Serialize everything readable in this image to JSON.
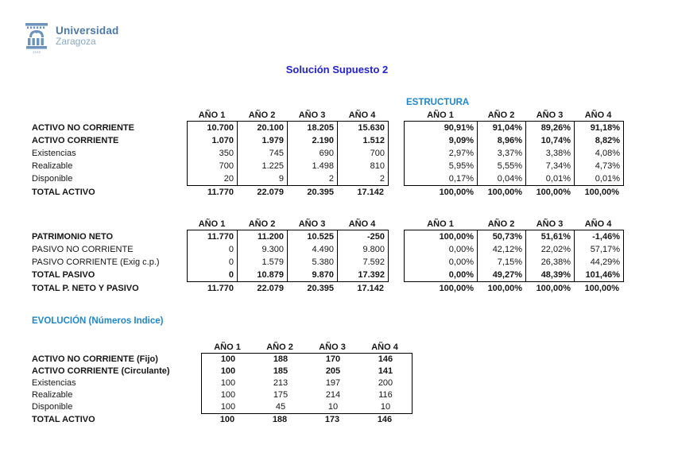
{
  "logo": {
    "line1": "Universidad",
    "line2": "Zaragoza",
    "year_mark": "1542"
  },
  "title": "Solución Supuesto 2",
  "sections": {
    "estructura_label": "ESTRUCTURA",
    "evolucion_label": "EVOLUCIÓN (Números Indice)"
  },
  "colors": {
    "title_blue": "#2222d6",
    "heading_blue": "#1e87d2",
    "logo_blue": "#6b93bd",
    "logo_text_dark": "#4b79a8",
    "logo_text_light": "#8aa9c7",
    "table_border": "#000000"
  },
  "year_headers": [
    "AÑO 1",
    "AÑO 2",
    "AÑO 3",
    "AÑO 4"
  ],
  "tables": [
    {
      "id": "activo",
      "rows": [
        {
          "label": "ACTIVO NO CORRIENTE",
          "bold": true,
          "values": [
            "10.700",
            "20.100",
            "18.205",
            "15.630"
          ],
          "est": [
            "90,91%",
            "91,04%",
            "89,26%",
            "91,18%"
          ]
        },
        {
          "label": "ACTIVO CORRIENTE",
          "bold": true,
          "values": [
            "1.070",
            "1.979",
            "2.190",
            "1.512"
          ],
          "est": [
            "9,09%",
            "8,96%",
            "10,74%",
            "8,82%"
          ]
        },
        {
          "label": "Existencias",
          "bold": false,
          "values": [
            "350",
            "745",
            "690",
            "700"
          ],
          "est": [
            "2,97%",
            "3,37%",
            "3,38%",
            "4,08%"
          ]
        },
        {
          "label": "Realizable",
          "bold": false,
          "values": [
            "700",
            "1.225",
            "1.498",
            "810"
          ],
          "est": [
            "5,95%",
            "5,55%",
            "7,34%",
            "4,73%"
          ]
        },
        {
          "label": "Disponible",
          "bold": false,
          "values": [
            "20",
            "9",
            "2",
            "2"
          ],
          "est": [
            "0,17%",
            "0,04%",
            "0,01%",
            "0,01%"
          ]
        }
      ],
      "total": {
        "label": "TOTAL ACTIVO",
        "values": [
          "11.770",
          "22.079",
          "20.395",
          "17.142"
        ],
        "est": [
          "100,00%",
          "100,00%",
          "100,00%",
          "100,00%"
        ]
      }
    },
    {
      "id": "pasivo",
      "rows": [
        {
          "label": "PATRIMONIO NETO",
          "bold": true,
          "values": [
            "11.770",
            "11.200",
            "10.525",
            "-250"
          ],
          "est": [
            "100,00%",
            "50,73%",
            "51,61%",
            "-1,46%"
          ]
        },
        {
          "label": "PASIVO NO CORRIENTE",
          "bold": false,
          "values": [
            "0",
            "9.300",
            "4.490",
            "9.800"
          ],
          "est": [
            "0,00%",
            "42,12%",
            "22,02%",
            "57,17%"
          ]
        },
        {
          "label": "PASIVO CORRIENTE (Exig c.p.)",
          "bold": false,
          "values": [
            "0",
            "1.579",
            "5.380",
            "7.592"
          ],
          "est": [
            "0,00%",
            "7,15%",
            "26,38%",
            "44,29%"
          ]
        },
        {
          "label": "TOTAL PASIVO",
          "bold": true,
          "values": [
            "0",
            "10.879",
            "9.870",
            "17.392"
          ],
          "est": [
            "0,00%",
            "49,27%",
            "48,39%",
            "101,46%"
          ]
        }
      ],
      "total": {
        "label": "TOTAL P. NETO Y PASIVO",
        "values": [
          "11.770",
          "22.079",
          "20.395",
          "17.142"
        ],
        "est": [
          "100,00%",
          "100,00%",
          "100,00%",
          "100,00%"
        ]
      }
    },
    {
      "id": "evolucion",
      "rows": [
        {
          "label": "ACTIVO NO CORRIENTE (Fijo)",
          "bold": true,
          "values": [
            "100",
            "188",
            "170",
            "146"
          ]
        },
        {
          "label": "ACTIVO CORRIENTE (Circulante)",
          "bold": true,
          "values": [
            "100",
            "185",
            "205",
            "141"
          ]
        },
        {
          "label": "Existencias",
          "bold": false,
          "values": [
            "100",
            "213",
            "197",
            "200"
          ]
        },
        {
          "label": "Realizable",
          "bold": false,
          "values": [
            "100",
            "175",
            "214",
            "116"
          ]
        },
        {
          "label": "Disponible",
          "bold": false,
          "values": [
            "100",
            "45",
            "10",
            "10"
          ]
        }
      ],
      "total": {
        "label": "TOTAL ACTIVO",
        "values": [
          "100",
          "188",
          "173",
          "146"
        ]
      }
    }
  ]
}
